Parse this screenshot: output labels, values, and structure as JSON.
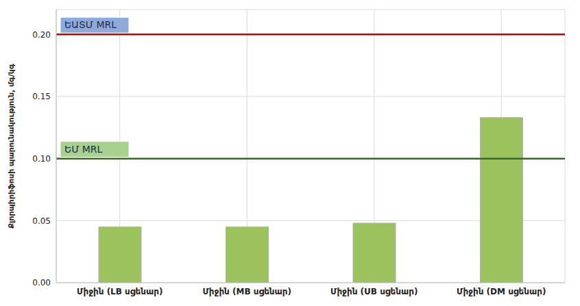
{
  "chart_data": {
    "type": "bar",
    "y_label": "Քլորպիրիֆոսի պարունակություն, մգ/կգ",
    "categories": [
      "Միջին (LB սցենար)",
      "Միջին (MB սցենար)",
      "Միջին (UB սցենար)",
      "Միջին (DM սցենար)"
    ],
    "values": [
      0.045,
      0.045,
      0.048,
      0.133
    ],
    "color": "#9cc25e",
    "ylim": [
      0,
      0.22
    ],
    "yticks": [
      {
        "value": 0,
        "label": "0.00"
      },
      {
        "value": 0.05,
        "label": "0.05"
      },
      {
        "value": 0.1,
        "label": "0.10"
      },
      {
        "value": 0.15,
        "label": "0.15"
      },
      {
        "value": 0.2,
        "label": "0.20"
      }
    ],
    "grid": true,
    "reference_lines": [
      {
        "label": "ԵԱՏՄ MRL",
        "value": 0.2,
        "color": "#c00000"
      },
      {
        "label": "ԵՄ MRL",
        "value": 0.1,
        "color": "#38672a"
      }
    ]
  }
}
